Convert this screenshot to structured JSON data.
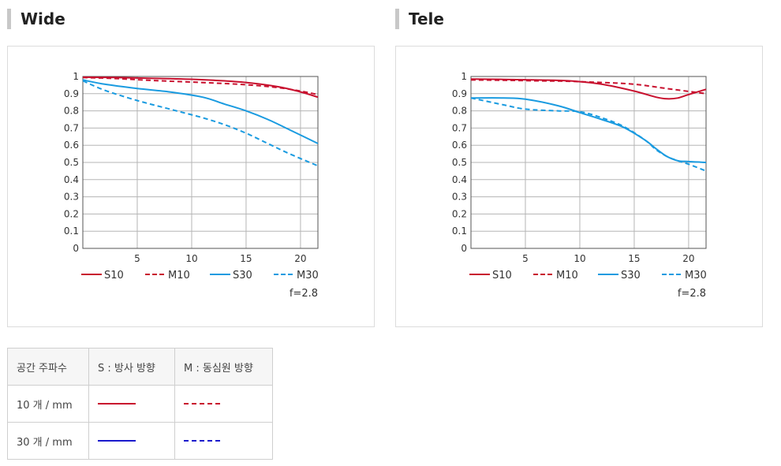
{
  "sections": {
    "wide_title": "Wide",
    "tele_title": "Tele"
  },
  "legend_table": {
    "header": [
      "공간 주파수",
      "S : 방사 방향",
      "M : 동심원 방향"
    ],
    "rows": [
      {
        "label": "10 개 / mm",
        "s_color": "#c8102e",
        "m_color": "#c8102e"
      },
      {
        "label": "30 개 / mm",
        "s_color": "#1a1acd",
        "m_color": "#1a1acd"
      }
    ]
  },
  "chart_data": [
    {
      "type": "line",
      "title": "Wide",
      "xlabel": "",
      "ylabel": "",
      "xlim": [
        0,
        21.6
      ],
      "ylim": [
        0,
        1
      ],
      "x_ticks": [
        5,
        10,
        15,
        20
      ],
      "y_ticks": [
        "0",
        "0.1",
        "0.2",
        "0.3",
        "0.4",
        "0.5",
        "0.6",
        "0.7",
        "0.8",
        "0.9",
        "1"
      ],
      "grid": true,
      "legend_position": "bottom",
      "annotation": "f=2.8",
      "series": [
        {
          "name": "S10",
          "color": "#c8102e",
          "dash": false,
          "x": [
            0,
            3,
            6,
            9,
            12,
            15,
            18,
            20,
            21.6
          ],
          "y": [
            0.996,
            0.994,
            0.99,
            0.986,
            0.978,
            0.965,
            0.94,
            0.91,
            0.88
          ]
        },
        {
          "name": "M10",
          "color": "#c8102e",
          "dash": true,
          "x": [
            0,
            3,
            6,
            9,
            12,
            15,
            18,
            20,
            21.6
          ],
          "y": [
            0.994,
            0.988,
            0.978,
            0.97,
            0.962,
            0.952,
            0.935,
            0.915,
            0.895
          ]
        },
        {
          "name": "S30",
          "color": "#1a9be0",
          "dash": false,
          "x": [
            0,
            2,
            5,
            8,
            11,
            13,
            15,
            17,
            19,
            21.6
          ],
          "y": [
            0.98,
            0.955,
            0.93,
            0.91,
            0.88,
            0.84,
            0.8,
            0.75,
            0.69,
            0.61
          ]
        },
        {
          "name": "M30",
          "color": "#1a9be0",
          "dash": true,
          "x": [
            0,
            2,
            5,
            8,
            11,
            13,
            15,
            17,
            19,
            21.6
          ],
          "y": [
            0.975,
            0.92,
            0.86,
            0.81,
            0.76,
            0.72,
            0.67,
            0.61,
            0.55,
            0.48
          ]
        }
      ]
    },
    {
      "type": "line",
      "title": "Tele",
      "xlabel": "",
      "ylabel": "",
      "xlim": [
        0,
        21.6
      ],
      "ylim": [
        0,
        1
      ],
      "x_ticks": [
        5,
        10,
        15,
        20
      ],
      "y_ticks": [
        "0",
        "0.1",
        "0.2",
        "0.3",
        "0.4",
        "0.5",
        "0.6",
        "0.7",
        "0.8",
        "0.9",
        "1"
      ],
      "grid": true,
      "legend_position": "bottom",
      "annotation": "f=2.8",
      "series": [
        {
          "name": "S10",
          "color": "#c8102e",
          "dash": false,
          "x": [
            0,
            3,
            6,
            9,
            12,
            15,
            17,
            18,
            19,
            20,
            21.6
          ],
          "y": [
            0.985,
            0.983,
            0.98,
            0.975,
            0.955,
            0.915,
            0.88,
            0.87,
            0.875,
            0.895,
            0.925
          ]
        },
        {
          "name": "M10",
          "color": "#c8102e",
          "dash": true,
          "x": [
            0,
            3,
            6,
            9,
            12,
            15,
            18,
            21.6
          ],
          "y": [
            0.98,
            0.978,
            0.975,
            0.972,
            0.965,
            0.955,
            0.93,
            0.9
          ]
        },
        {
          "name": "S30",
          "color": "#1a9be0",
          "dash": false,
          "x": [
            0,
            3,
            5,
            8,
            10,
            12,
            14,
            16,
            17,
            18,
            19,
            20,
            21.6
          ],
          "y": [
            0.875,
            0.875,
            0.868,
            0.83,
            0.79,
            0.75,
            0.705,
            0.63,
            0.58,
            0.535,
            0.51,
            0.505,
            0.5
          ]
        },
        {
          "name": "M30",
          "color": "#1a9be0",
          "dash": true,
          "x": [
            0,
            3,
            5,
            8,
            10,
            12,
            14,
            16,
            17,
            18,
            19,
            20,
            21.6
          ],
          "y": [
            0.875,
            0.835,
            0.81,
            0.8,
            0.795,
            0.76,
            0.71,
            0.63,
            0.575,
            0.535,
            0.51,
            0.49,
            0.45
          ]
        }
      ]
    }
  ]
}
